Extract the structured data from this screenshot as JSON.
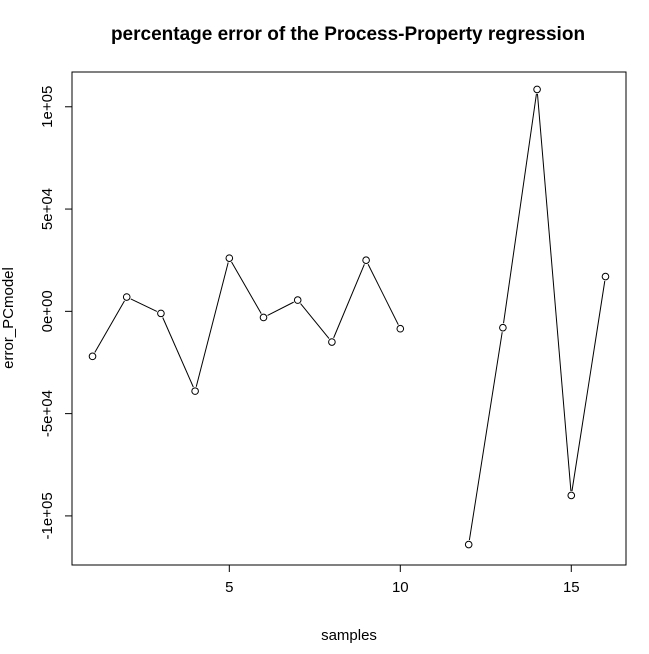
{
  "chart_data": {
    "type": "line",
    "title": "percentage error of the Process-Property regression",
    "xlabel": "samples",
    "ylabel": "error_PCmodel",
    "xlim": [
      0.4,
      16.6
    ],
    "ylim": [
      -124000,
      117000
    ],
    "x_ticks": [
      5,
      10,
      15
    ],
    "x_tick_labels": [
      "5",
      "10",
      "15"
    ],
    "y_ticks": [
      -100000,
      -50000,
      0,
      50000,
      100000
    ],
    "y_tick_labels": [
      "-1e+05",
      "-5e+04",
      "0e+00",
      "5e+04",
      "1e+05"
    ],
    "grid": false,
    "series": [
      {
        "markers": "open-circle",
        "points": [
          {
            "x": 1,
            "y": -22000
          },
          {
            "x": 2,
            "y": 7000
          },
          {
            "x": 3,
            "y": -1000
          },
          {
            "x": 4,
            "y": -39000
          },
          {
            "x": 5,
            "y": 26000
          },
          {
            "x": 6,
            "y": -3000
          },
          {
            "x": 7,
            "y": 5500
          },
          {
            "x": 8,
            "y": -15000
          },
          {
            "x": 9,
            "y": 25000
          },
          {
            "x": 10,
            "y": -8500
          },
          {
            "x": 11,
            "y": null
          },
          {
            "x": 12,
            "y": -114000
          },
          {
            "x": 13,
            "y": -8000
          },
          {
            "x": 14,
            "y": 108500
          },
          {
            "x": 15,
            "y": -90000
          },
          {
            "x": 16,
            "y": 17000
          }
        ]
      }
    ]
  }
}
